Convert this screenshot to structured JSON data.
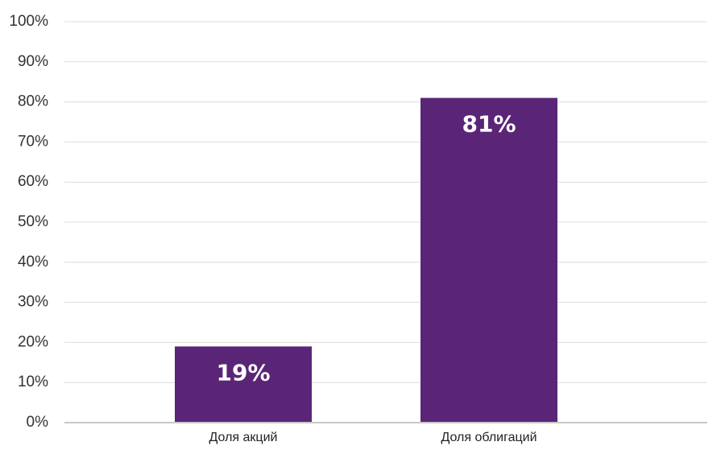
{
  "chart_data": {
    "type": "bar",
    "categories": [
      "Доля акций",
      "Доля облигаций"
    ],
    "values": [
      19,
      81
    ],
    "data_labels": [
      "19%",
      "81%"
    ],
    "ylim": [
      0,
      100
    ],
    "yticks": [
      0,
      10,
      20,
      30,
      40,
      50,
      60,
      70,
      80,
      90,
      100
    ],
    "ytick_labels": [
      "0%",
      "10%",
      "20%",
      "30%",
      "40%",
      "50%",
      "60%",
      "70%",
      "80%",
      "90%",
      "100%"
    ],
    "grid": true,
    "legend": "none",
    "bar_color": "#5b2577",
    "label_color": "#ffffff"
  }
}
